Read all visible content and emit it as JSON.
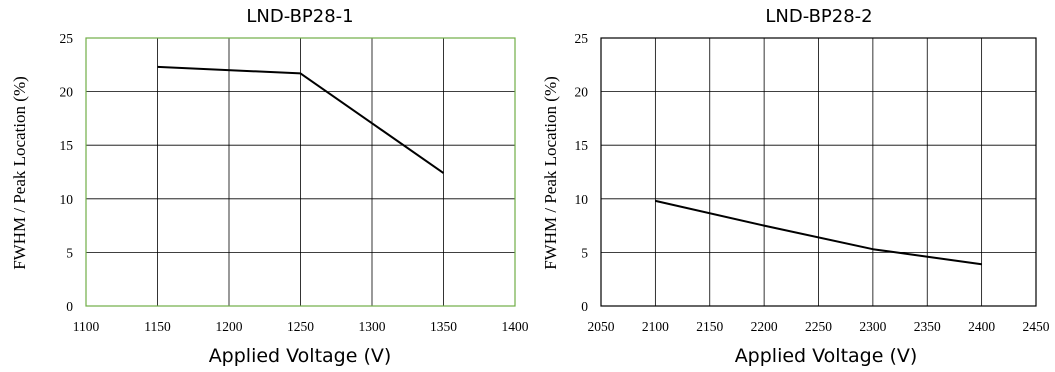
{
  "chart_data": [
    {
      "type": "line",
      "title": "LND-BP28-1",
      "xlabel": "Applied Voltage (V)",
      "ylabel": "FWHM / Peak Location (%)",
      "xlim": [
        1100,
        1400
      ],
      "ylim": [
        0,
        25
      ],
      "xticks": [
        1100,
        1150,
        1200,
        1250,
        1300,
        1350,
        1400
      ],
      "yticks": [
        0,
        5,
        10,
        15,
        20,
        25
      ],
      "grid": true,
      "frame_color": "#70ad47",
      "series": [
        {
          "x": [
            1150,
            1250,
            1350
          ],
          "values": [
            22.3,
            21.7,
            12.4
          ],
          "color": "#000000"
        }
      ]
    },
    {
      "type": "line",
      "title": "LND-BP28-2",
      "xlabel": "Applied Voltage (V)",
      "ylabel": "FWHM / Peak Location (%)",
      "xlim": [
        2050,
        2450
      ],
      "ylim": [
        0,
        25
      ],
      "xticks": [
        2050,
        2100,
        2150,
        2200,
        2250,
        2300,
        2350,
        2400,
        2450
      ],
      "yticks": [
        0,
        5,
        10,
        15,
        20,
        25
      ],
      "grid": true,
      "frame_color": "#000000",
      "series": [
        {
          "x": [
            2100,
            2200,
            2300,
            2400
          ],
          "values": [
            9.8,
            7.5,
            5.3,
            3.9
          ],
          "color": "#000000"
        }
      ]
    }
  ]
}
